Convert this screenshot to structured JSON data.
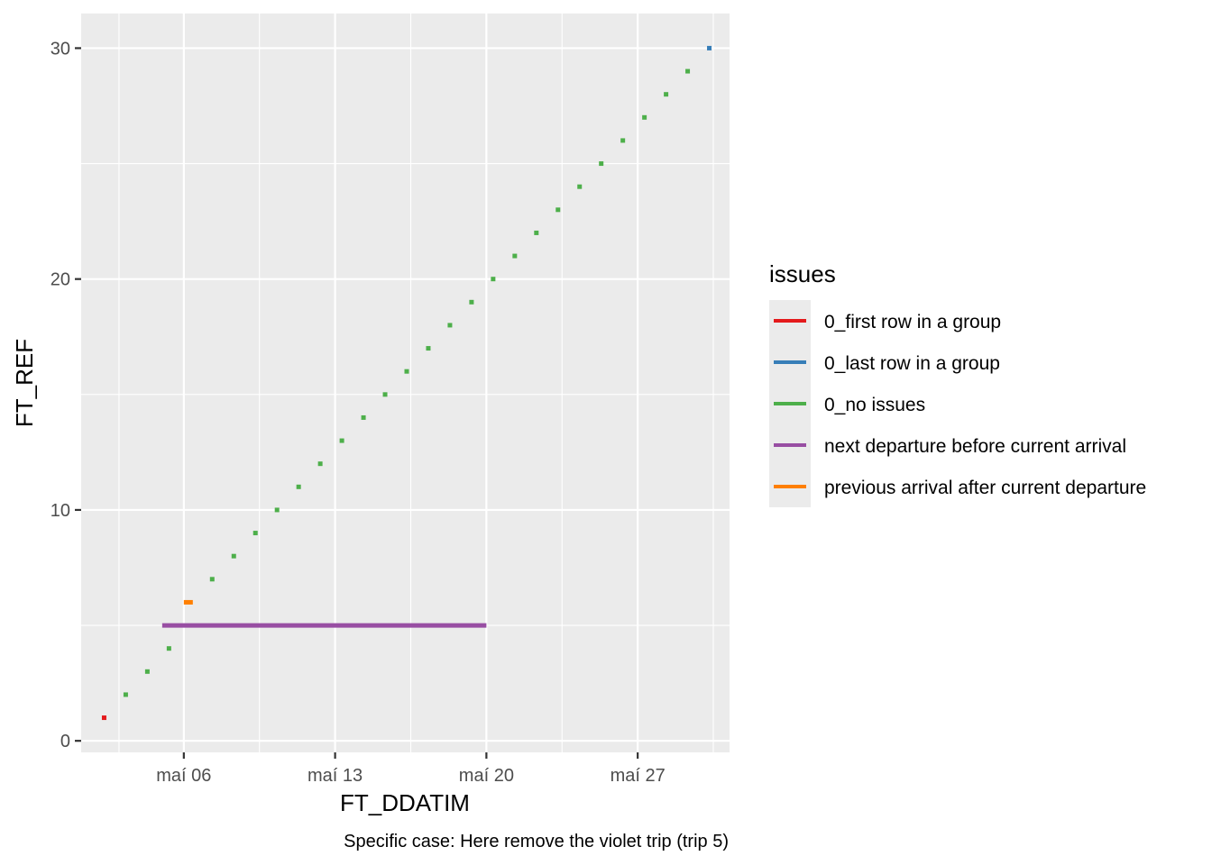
{
  "chart_data": {
    "type": "line",
    "title": "",
    "xlabel": "FT_DDATIM",
    "ylabel": "FT_REF",
    "caption": "Specific case: Here remove the violet trip (trip 5)",
    "x_axis": {
      "type": "date",
      "range": [
        "2023-05-01T06:00",
        "2023-05-31T06:00"
      ],
      "major_ticks": [
        {
          "date": "2023-05-06",
          "label": "maí 06"
        },
        {
          "date": "2023-05-13",
          "label": "maí 13"
        },
        {
          "date": "2023-05-20",
          "label": "maí 20"
        },
        {
          "date": "2023-05-27",
          "label": "maí 27"
        }
      ],
      "minor_ticks": [
        "2023-05-03T00:00",
        "2023-05-09T12:00",
        "2023-05-16T12:00",
        "2023-05-23T12:00",
        "2023-05-30T12:00"
      ]
    },
    "y_axis": {
      "range": [
        -0.5,
        31.5
      ],
      "major_ticks": [
        0,
        10,
        20,
        30
      ],
      "minor_ticks": [
        5,
        15,
        25
      ]
    },
    "grid": true,
    "legend": {
      "title": "issues",
      "position": "right",
      "entries": [
        {
          "label": "0_first row in a group",
          "color": "#E41A1C"
        },
        {
          "label": "0_last row in a group",
          "color": "#377EB8"
        },
        {
          "label": "0_no issues",
          "color": "#4DAF4A"
        },
        {
          "label": "next departure before current arrival",
          "color": "#984EA3"
        },
        {
          "label": "previous arrival after current departure",
          "color": "#FF7F00"
        }
      ]
    },
    "segments": [
      {
        "y": 1,
        "start": "2023-05-02T05:00",
        "end": "2023-05-02T10:00",
        "issue": "0_first row in a group"
      },
      {
        "y": 2,
        "start": "2023-05-03T05:00",
        "end": "2023-05-03T10:00",
        "issue": "0_no issues"
      },
      {
        "y": 3,
        "start": "2023-05-04T05:00",
        "end": "2023-05-04T10:00",
        "issue": "0_no issues"
      },
      {
        "y": 4,
        "start": "2023-05-05T05:00",
        "end": "2023-05-05T10:00",
        "issue": "0_no issues"
      },
      {
        "y": 5,
        "start": "2023-05-05T00:00",
        "end": "2023-05-20T00:00",
        "issue": "next departure before current arrival"
      },
      {
        "y": 6,
        "start": "2023-05-06T00:00",
        "end": "2023-05-06T10:00",
        "issue": "previous arrival after current departure"
      },
      {
        "y": 7,
        "start": "2023-05-07T05:00",
        "end": "2023-05-07T10:00",
        "issue": "0_no issues"
      },
      {
        "y": 8,
        "start": "2023-05-08T05:00",
        "end": "2023-05-08T10:00",
        "issue": "0_no issues"
      },
      {
        "y": 9,
        "start": "2023-05-09T05:00",
        "end": "2023-05-09T10:00",
        "issue": "0_no issues"
      },
      {
        "y": 10,
        "start": "2023-05-10T05:00",
        "end": "2023-05-10T10:00",
        "issue": "0_no issues"
      },
      {
        "y": 11,
        "start": "2023-05-11T05:00",
        "end": "2023-05-11T10:00",
        "issue": "0_no issues"
      },
      {
        "y": 12,
        "start": "2023-05-12T05:00",
        "end": "2023-05-12T10:00",
        "issue": "0_no issues"
      },
      {
        "y": 13,
        "start": "2023-05-13T05:00",
        "end": "2023-05-13T10:00",
        "issue": "0_no issues"
      },
      {
        "y": 14,
        "start": "2023-05-14T05:00",
        "end": "2023-05-14T10:00",
        "issue": "0_no issues"
      },
      {
        "y": 15,
        "start": "2023-05-15T05:00",
        "end": "2023-05-15T10:00",
        "issue": "0_no issues"
      },
      {
        "y": 16,
        "start": "2023-05-16T05:00",
        "end": "2023-05-16T10:00",
        "issue": "0_no issues"
      },
      {
        "y": 17,
        "start": "2023-05-17T05:00",
        "end": "2023-05-17T10:00",
        "issue": "0_no issues"
      },
      {
        "y": 18,
        "start": "2023-05-18T05:00",
        "end": "2023-05-18T10:00",
        "issue": "0_no issues"
      },
      {
        "y": 19,
        "start": "2023-05-19T05:00",
        "end": "2023-05-19T10:00",
        "issue": "0_no issues"
      },
      {
        "y": 20,
        "start": "2023-05-20T05:00",
        "end": "2023-05-20T10:00",
        "issue": "0_no issues"
      },
      {
        "y": 21,
        "start": "2023-05-21T05:00",
        "end": "2023-05-21T10:00",
        "issue": "0_no issues"
      },
      {
        "y": 22,
        "start": "2023-05-22T05:00",
        "end": "2023-05-22T10:00",
        "issue": "0_no issues"
      },
      {
        "y": 23,
        "start": "2023-05-23T05:00",
        "end": "2023-05-23T10:00",
        "issue": "0_no issues"
      },
      {
        "y": 24,
        "start": "2023-05-24T05:00",
        "end": "2023-05-24T10:00",
        "issue": "0_no issues"
      },
      {
        "y": 25,
        "start": "2023-05-25T05:00",
        "end": "2023-05-25T10:00",
        "issue": "0_no issues"
      },
      {
        "y": 26,
        "start": "2023-05-26T05:00",
        "end": "2023-05-26T10:00",
        "issue": "0_no issues"
      },
      {
        "y": 27,
        "start": "2023-05-27T05:00",
        "end": "2023-05-27T10:00",
        "issue": "0_no issues"
      },
      {
        "y": 28,
        "start": "2023-05-28T05:00",
        "end": "2023-05-28T10:00",
        "issue": "0_no issues"
      },
      {
        "y": 29,
        "start": "2023-05-29T05:00",
        "end": "2023-05-29T10:00",
        "issue": "0_no issues"
      },
      {
        "y": 30,
        "start": "2023-05-30T05:00",
        "end": "2023-05-30T10:00",
        "issue": "0_last row in a group"
      }
    ]
  }
}
